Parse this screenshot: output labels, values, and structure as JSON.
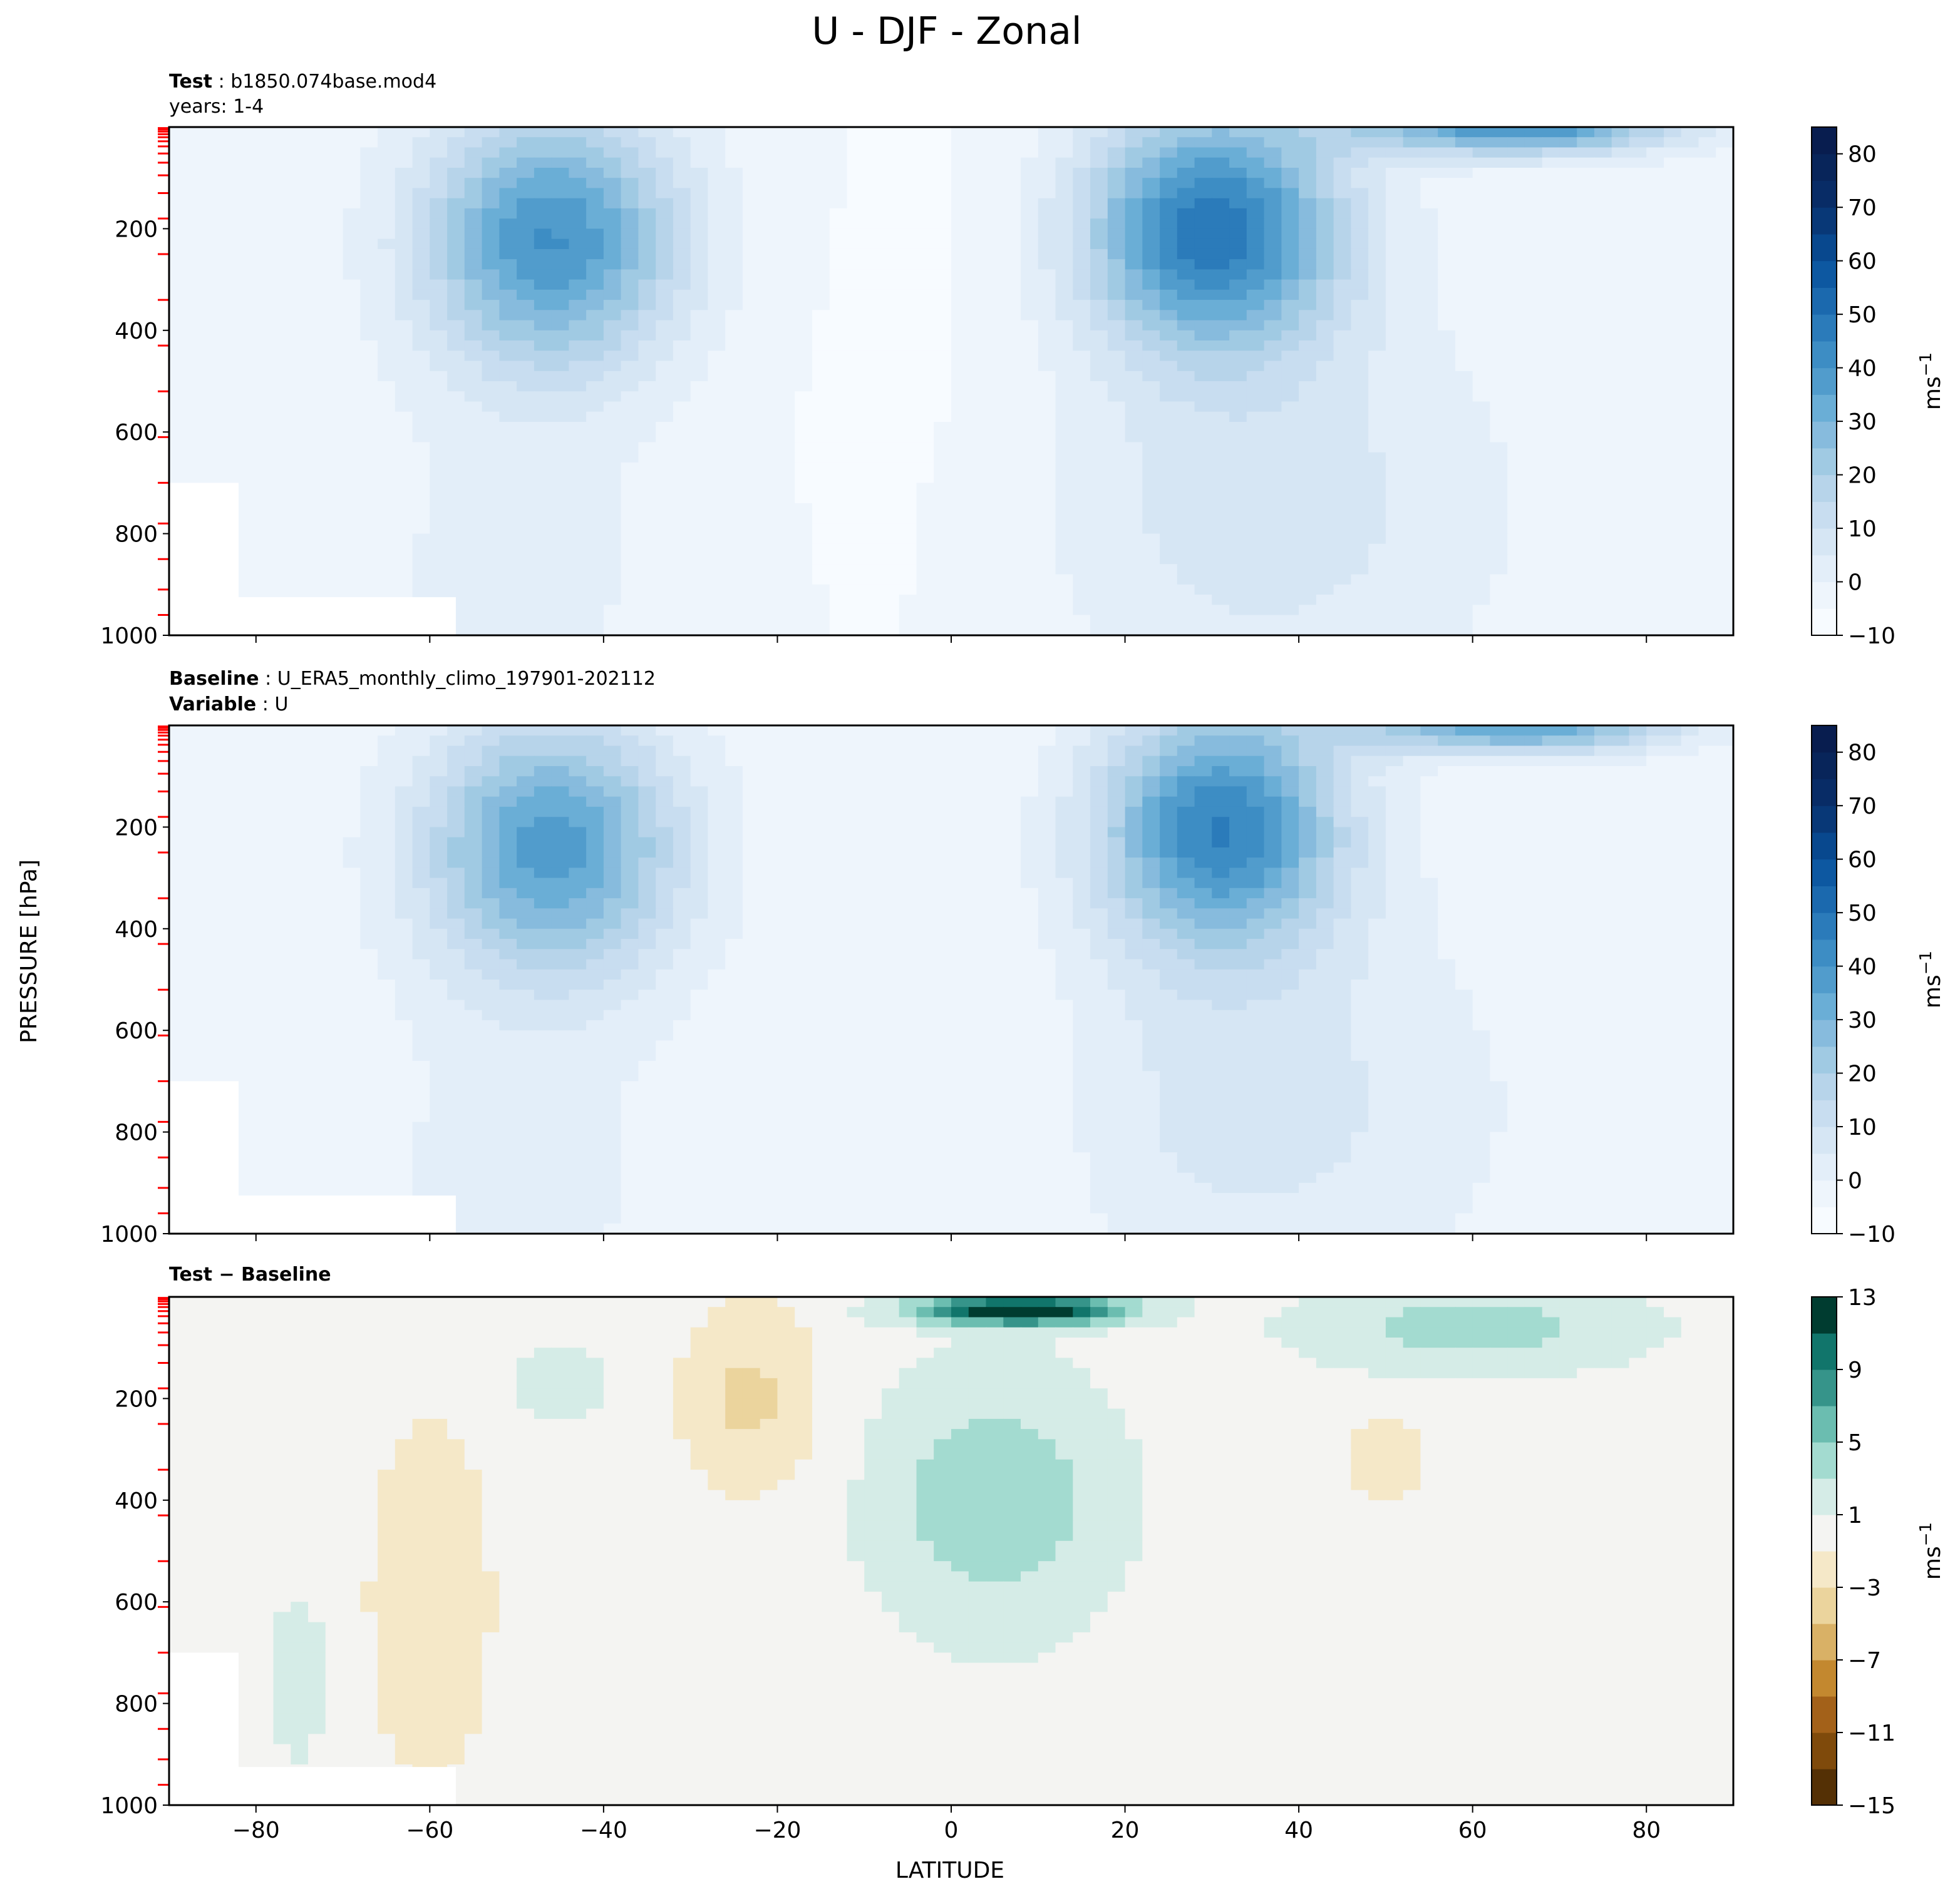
{
  "figure": {
    "title": "U - DJF - Zonal",
    "xlabel": "LATITUDE",
    "ylabel": "PRESSURE [hPa]",
    "units_label": "ms",
    "units_exponent": "−1"
  },
  "chart_data": [
    {
      "type": "contour",
      "panel": "test",
      "header": {
        "line1_bold": "Test",
        "line1_sep": " : ",
        "line1_value": "b1850.074base.mod4",
        "line2": "years: 1-4",
        "line2_bold": "",
        "line2_sep": "",
        "line2_value": ""
      },
      "xlim": [
        -90,
        90
      ],
      "ylim": [
        1000,
        0
      ],
      "xticks": [
        -80,
        -60,
        -40,
        -20,
        0,
        20,
        40,
        60,
        80
      ],
      "yticks": [
        200,
        400,
        600,
        800,
        1000
      ],
      "colorbar": {
        "levels": [
          -10,
          -5,
          0,
          5,
          10,
          15,
          20,
          25,
          30,
          35,
          40,
          45,
          50,
          55,
          60,
          65,
          70,
          75,
          80,
          85
        ],
        "ticks": [
          -10,
          0,
          10,
          20,
          30,
          40,
          50,
          60,
          70,
          80
        ],
        "colors": [
          "#f7fbff",
          "#eef5fc",
          "#e3eef9",
          "#d6e6f4",
          "#c8ddf0",
          "#b7d4ea",
          "#a0cae3",
          "#87bbdd",
          "#6aaed6",
          "#519ccc",
          "#3d8dc4",
          "#2b7bba",
          "#1b69ae",
          "#0d58a1",
          "#08488e",
          "#083877",
          "#082c66",
          "#08255a",
          "#081d4f"
        ]
      },
      "jets": [
        {
          "name": "southern jet",
          "lat": -45,
          "pressure": 220,
          "max": 42
        },
        {
          "name": "northern jet",
          "lat": 31,
          "pressure": 200,
          "max": 52
        },
        {
          "name": "polar stratosphere",
          "lat": 62,
          "pressure": 5,
          "max": 45
        }
      ]
    },
    {
      "type": "contour",
      "panel": "baseline",
      "header": {
        "line1_bold": "Baseline",
        "line1_sep": " : ",
        "line1_value": "U_ERA5_monthly_climo_197901-202112",
        "line2": "",
        "line2_bold": "Variable",
        "line2_sep": " : ",
        "line2_value": "U"
      },
      "xlim": [
        -90,
        90
      ],
      "ylim": [
        1000,
        0
      ],
      "xticks": [
        -80,
        -60,
        -40,
        -20,
        0,
        20,
        40,
        60,
        80
      ],
      "yticks": [
        200,
        400,
        600,
        800,
        1000
      ],
      "colorbar": {
        "levels": [
          -10,
          -5,
          0,
          5,
          10,
          15,
          20,
          25,
          30,
          35,
          40,
          45,
          50,
          55,
          60,
          65,
          70,
          75,
          80,
          85
        ],
        "ticks": [
          -10,
          0,
          10,
          20,
          30,
          40,
          50,
          60,
          70,
          80
        ],
        "colors": [
          "#f7fbff",
          "#eef5fc",
          "#e3eef9",
          "#d6e6f4",
          "#c8ddf0",
          "#b7d4ea",
          "#a0cae3",
          "#87bbdd",
          "#6aaed6",
          "#519ccc",
          "#3d8dc4",
          "#2b7bba",
          "#1b69ae",
          "#0d58a1",
          "#08488e",
          "#083877",
          "#082c66",
          "#08255a",
          "#081d4f"
        ]
      },
      "jets": [
        {
          "name": "southern jet",
          "lat": -46,
          "pressure": 240,
          "max": 40
        },
        {
          "name": "northern jet",
          "lat": 31,
          "pressure": 200,
          "max": 48
        },
        {
          "name": "polar stratosphere",
          "lat": 62,
          "pressure": 5,
          "max": 40
        }
      ]
    },
    {
      "type": "contour",
      "panel": "difference",
      "header": {
        "line1_bold": "Test − Baseline",
        "line1_sep": "",
        "line1_value": "",
        "line2": "",
        "line2_bold": "",
        "line2_sep": "",
        "line2_value": ""
      },
      "xlim": [
        -90,
        90
      ],
      "ylim": [
        1000,
        0
      ],
      "xticks": [
        -80,
        -60,
        -40,
        -20,
        0,
        20,
        40,
        60,
        80
      ],
      "yticks": [
        200,
        400,
        600,
        800,
        1000
      ],
      "colorbar": {
        "levels": [
          -15,
          -13,
          -11,
          -9,
          -7,
          -5,
          -3,
          -1,
          1,
          3,
          5,
          7,
          9,
          11,
          13
        ],
        "ticks": [
          -15,
          -11,
          -7,
          -3,
          1,
          5,
          9,
          13
        ],
        "colors": [
          "#543005",
          "#7f4a0b",
          "#a36119",
          "#c3882f",
          "#d9b166",
          "#ebd49d",
          "#f5e8c8",
          "#f4f4f2",
          "#d5ece7",
          "#a3dbd0",
          "#6bbdb0",
          "#36948a",
          "#11756b",
          "#003c30"
        ]
      },
      "anomalies": [
        {
          "name": "equatorial stratosphere max",
          "lat": 8,
          "pressure": 25,
          "value": 13
        },
        {
          "name": "tropical westerly bias",
          "lat": 5,
          "pressure": 400,
          "value": 4
        },
        {
          "name": "subtropical easterly bias",
          "lat": -23,
          "pressure": 200,
          "value": -3
        }
      ]
    }
  ]
}
